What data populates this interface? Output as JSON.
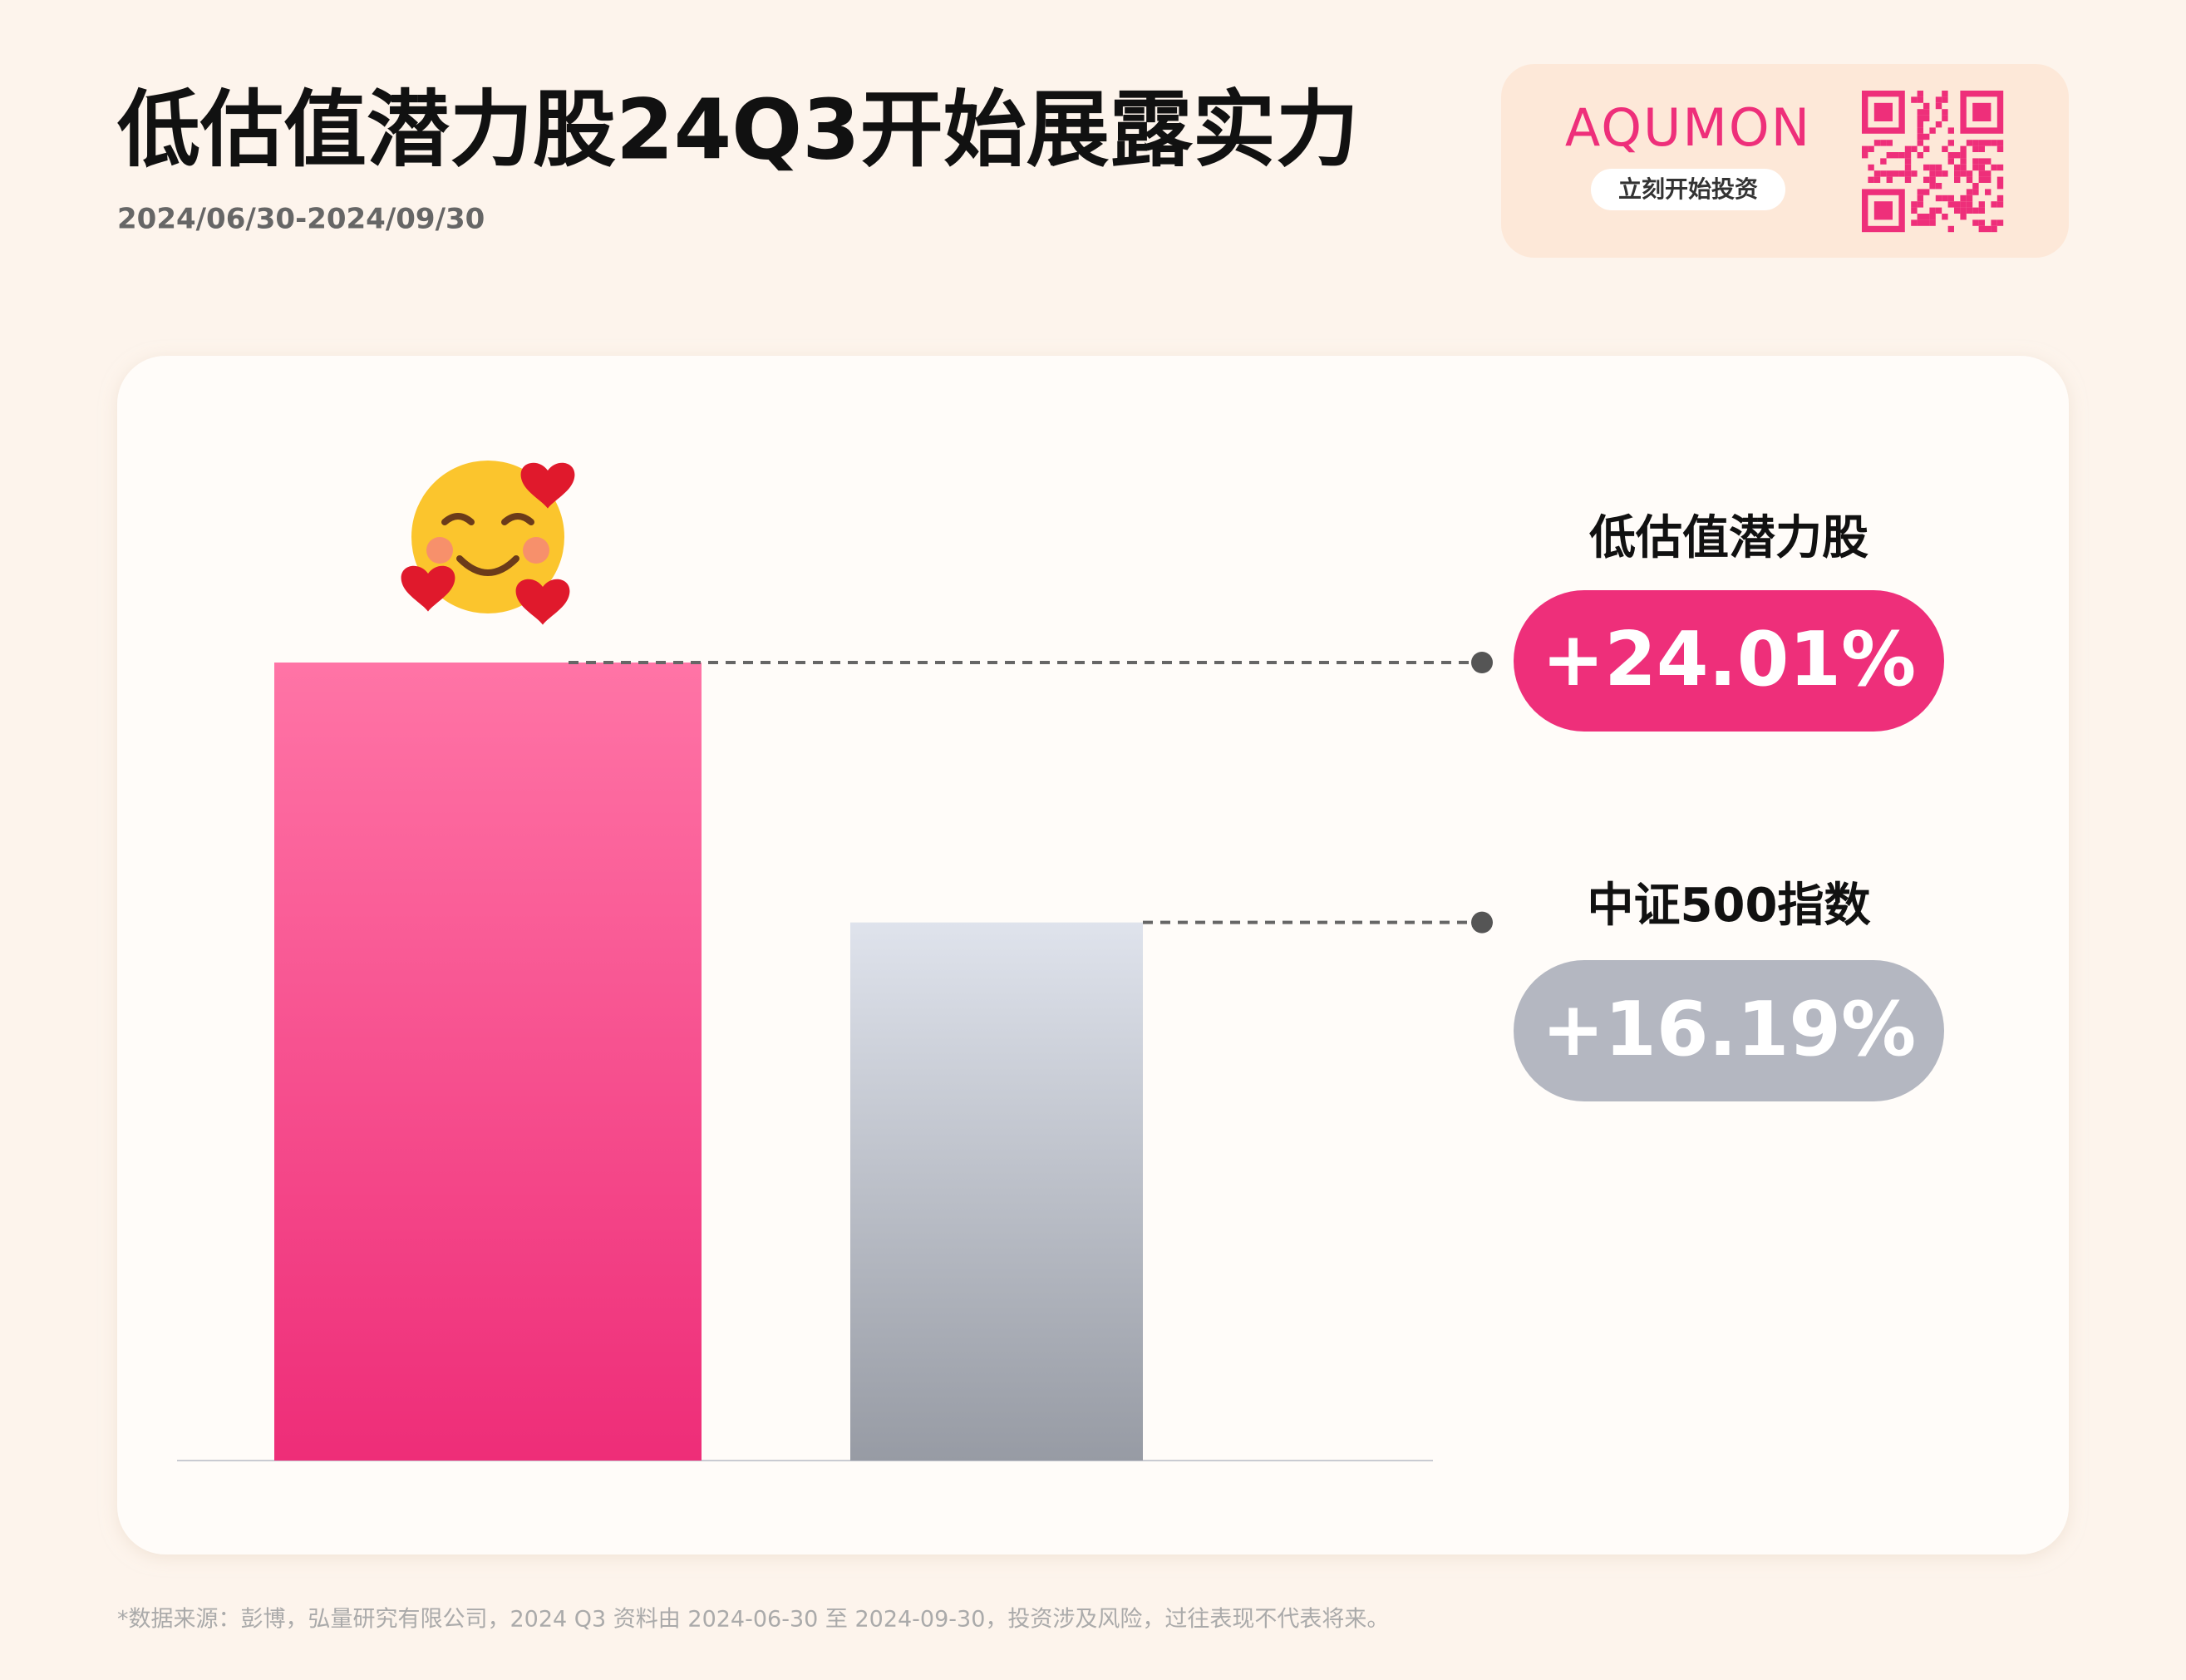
{
  "chart_data": {
    "type": "bar",
    "title": "低估值潜力股24Q3开始展露实力",
    "subtitle": "2024/06/30-2024/09/30",
    "categories": [
      "低估值潜力股",
      "中证500指数"
    ],
    "values": [
      24.01,
      16.19
    ],
    "value_labels": [
      "+24.01%",
      "+16.19%"
    ],
    "colors": [
      [
        "#ff74a6",
        "#ee2d78"
      ],
      [
        "#dfe3ec",
        "#979ba4"
      ]
    ],
    "label_colors": [
      "#ee2f7a",
      "#b4b7c1"
    ]
  },
  "brand": {
    "name": "AQUMON",
    "cta": "立刻开始投资"
  },
  "footnote": "*数据来源：彭博，弘量研究有限公司，2024 Q3 资料由 2024-06-30 至 2024-09-30，投资涉及风险，过往表现不代表将来。"
}
